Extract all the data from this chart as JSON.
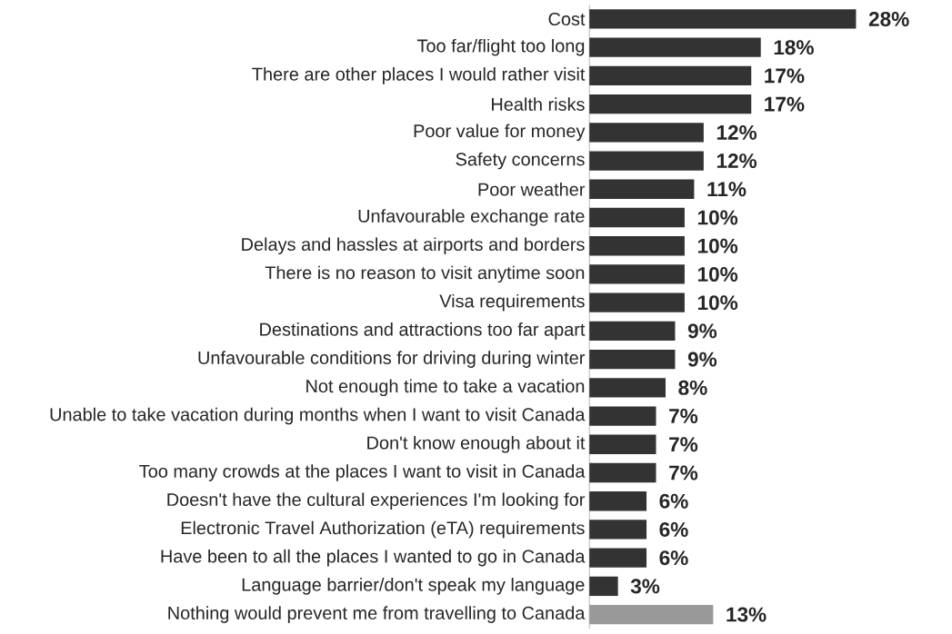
{
  "chart_data": {
    "type": "bar",
    "orientation": "horizontal",
    "categories": [
      "Cost",
      "Too far/flight too long",
      "There are other places I would rather visit",
      "Health risks",
      "Poor value for money",
      "Safety concerns",
      "Poor weather",
      "Unfavourable exchange rate",
      "Delays and hassles at airports and borders",
      "There is no reason to visit anytime soon",
      "Visa requirements",
      "Destinations and attractions too far apart",
      "Unfavourable conditions for driving during winter",
      "Not enough time to take a vacation",
      "Unable to take vacation during months when I want to visit Canada",
      "Don't know enough about it",
      "Too many crowds at the places I want to visit in Canada",
      "Doesn't have the cultural experiences I'm looking for",
      "Electronic Travel Authorization (eTA) requirements",
      "Have been to all the places I wanted to go in Canada",
      "Language barrier/don't speak my language",
      "Nothing would prevent me from travelling to Canada"
    ],
    "values": [
      28,
      18,
      17,
      17,
      12,
      12,
      11,
      10,
      10,
      10,
      10,
      9,
      9,
      8,
      7,
      7,
      7,
      6,
      6,
      6,
      3,
      13
    ],
    "value_labels": [
      "28%",
      "18%",
      "17%",
      "17%",
      "12%",
      "12%",
      "11%",
      "10%",
      "10%",
      "10%",
      "10%",
      "9%",
      "9%",
      "8%",
      "7%",
      "7%",
      "7%",
      "6%",
      "6%",
      "6%",
      "3%",
      "13%"
    ],
    "colors": [
      "#333333",
      "#333333",
      "#333333",
      "#333333",
      "#333333",
      "#333333",
      "#333333",
      "#333333",
      "#333333",
      "#333333",
      "#333333",
      "#333333",
      "#333333",
      "#333333",
      "#333333",
      "#333333",
      "#333333",
      "#333333",
      "#333333",
      "#333333",
      "#333333",
      "#999999"
    ],
    "stacked": false
  }
}
